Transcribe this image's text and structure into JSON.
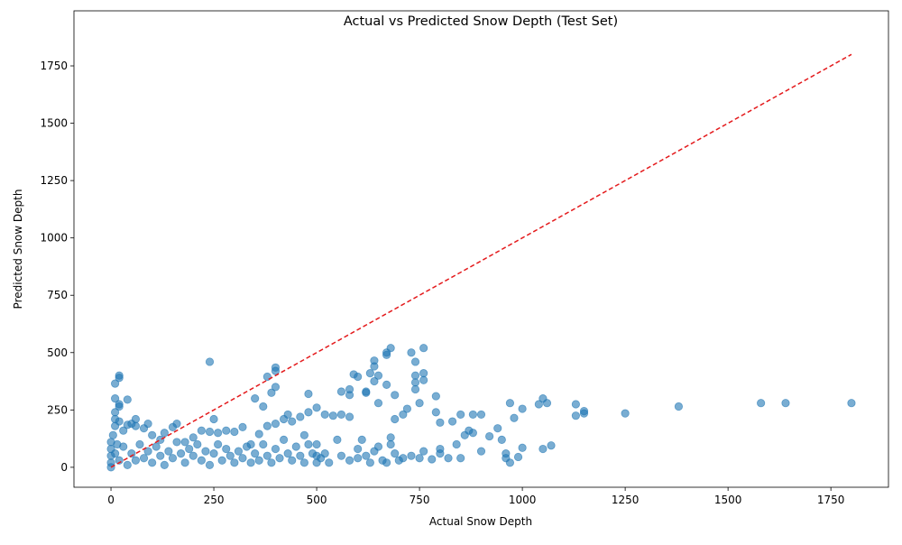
{
  "chart_data": {
    "type": "scatter",
    "title": "Actual vs Predicted Snow Depth (Test Set)",
    "xlabel": "Actual Snow Depth",
    "ylabel": "Predicted Snow Depth",
    "color": "#1f77b4",
    "x": [
      10,
      20,
      20,
      10,
      40,
      20,
      20,
      10,
      240,
      250,
      350,
      380,
      400,
      400,
      400,
      390,
      370,
      480,
      590,
      600,
      560,
      580,
      580,
      620,
      620,
      640,
      640,
      630,
      640,
      650,
      650,
      670,
      670,
      680,
      670,
      690,
      690,
      710,
      720,
      730,
      740,
      740,
      740,
      740,
      750,
      760,
      760,
      760,
      790,
      790,
      800,
      830,
      850,
      880,
      900,
      970,
      980,
      1000,
      1040,
      1050,
      1060,
      1130,
      1130,
      1150,
      1150,
      1250,
      1380,
      1580,
      1640,
      1800,
      1050,
      1070,
      1000,
      990,
      970,
      960,
      950,
      940,
      920,
      880,
      870,
      860,
      850,
      820,
      800,
      780,
      760,
      750,
      730,
      700,
      680,
      680,
      670,
      650,
      630,
      610,
      600,
      580,
      560,
      540,
      520,
      500,
      500,
      500,
      480,
      470,
      460,
      440,
      430,
      420,
      400,
      380,
      360,
      340,
      320,
      300,
      280,
      260,
      240,
      220,
      200,
      180,
      160,
      150,
      130,
      120,
      100,
      90,
      80,
      60,
      60,
      50,
      40,
      30,
      20,
      10,
      10,
      0,
      0,
      0,
      0,
      0,
      5,
      10,
      15,
      20,
      30,
      40,
      50,
      60,
      70,
      80,
      90,
      100,
      110,
      120,
      130,
      140,
      150,
      160,
      170,
      180,
      190,
      200,
      210,
      220,
      230,
      240,
      250,
      260,
      270,
      280,
      290,
      300,
      310,
      320,
      330,
      340,
      350,
      360,
      370,
      380,
      390,
      400,
      410,
      420,
      430,
      440,
      450,
      460,
      470,
      480,
      490,
      500,
      510,
      520,
      530,
      550,
      560,
      580,
      600,
      620,
      640,
      660,
      690,
      710,
      800,
      840,
      900,
      960
    ],
    "y": [
      365,
      400,
      390,
      300,
      295,
      275,
      265,
      240,
      460,
      210,
      300,
      395,
      435,
      420,
      350,
      325,
      265,
      320,
      405,
      395,
      330,
      340,
      315,
      330,
      325,
      465,
      440,
      410,
      375,
      400,
      280,
      500,
      490,
      520,
      360,
      315,
      210,
      230,
      255,
      500,
      460,
      400,
      370,
      340,
      280,
      520,
      410,
      380,
      310,
      240,
      195,
      200,
      230,
      230,
      230,
      280,
      215,
      255,
      275,
      300,
      280,
      275,
      225,
      245,
      235,
      235,
      265,
      280,
      280,
      280,
      80,
      95,
      85,
      45,
      20,
      60,
      120,
      170,
      135,
      150,
      160,
      140,
      40,
      40,
      60,
      35,
      70,
      40,
      50,
      30,
      130,
      100,
      20,
      90,
      20,
      120,
      40,
      220,
      230,
      225,
      230,
      260,
      100,
      50,
      240,
      140,
      220,
      200,
      230,
      210,
      190,
      180,
      145,
      100,
      175,
      155,
      160,
      150,
      155,
      160,
      130,
      110,
      190,
      175,
      150,
      120,
      140,
      190,
      170,
      210,
      180,
      190,
      185,
      160,
      200,
      210,
      180,
      0,
      20,
      50,
      80,
      110,
      140,
      60,
      100,
      30,
      90,
      10,
      60,
      30,
      100,
      40,
      70,
      20,
      90,
      50,
      10,
      70,
      40,
      110,
      60,
      20,
      80,
      50,
      100,
      30,
      70,
      10,
      60,
      100,
      30,
      80,
      50,
      20,
      70,
      40,
      90,
      20,
      60,
      30,
      100,
      50,
      20,
      80,
      40,
      120,
      60,
      30,
      90,
      50,
      20,
      100,
      60,
      20,
      40,
      60,
      20,
      120,
      50,
      30,
      80,
      50,
      70,
      30,
      60,
      40,
      80,
      100,
      70,
      40
    ],
    "reference_line": {
      "x": [
        0,
        1800
      ],
      "y": [
        0,
        1800
      ],
      "color": "#e41a1c"
    },
    "xlim": [
      -90,
      1890
    ],
    "ylim": [
      -87,
      1990
    ],
    "xticks": [
      0,
      250,
      500,
      750,
      1000,
      1250,
      1500,
      1750
    ],
    "yticks": [
      0,
      250,
      500,
      750,
      1000,
      1250,
      1500,
      1750
    ]
  }
}
